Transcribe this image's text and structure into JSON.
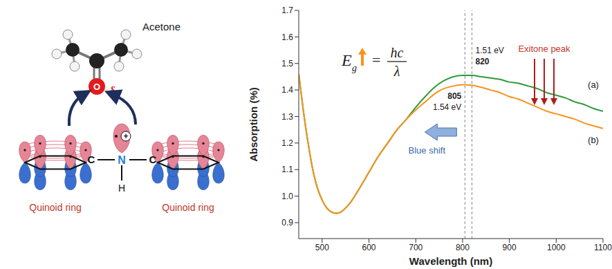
{
  "chart_data": {
    "type": "line",
    "x_label": "Wavelength (nm)",
    "y_label": "Absorption (%)",
    "x": [
      450,
      460,
      470,
      480,
      490,
      500,
      510,
      520,
      530,
      540,
      550,
      560,
      580,
      600,
      620,
      640,
      660,
      680,
      700,
      720,
      740,
      760,
      780,
      800,
      820,
      840,
      860,
      880,
      900,
      920,
      940,
      960,
      980,
      1000,
      1020,
      1040,
      1060,
      1080,
      1100
    ],
    "series": [
      {
        "name": "(a)",
        "color": "#2f9a3a",
        "values": [
          1.46,
          1.32,
          1.2,
          1.1,
          1.03,
          0.985,
          0.955,
          0.94,
          0.935,
          0.94,
          0.955,
          0.975,
          1.03,
          1.09,
          1.15,
          1.2,
          1.25,
          1.29,
          1.335,
          1.375,
          1.41,
          1.435,
          1.45,
          1.455,
          1.455,
          1.45,
          1.445,
          1.44,
          1.43,
          1.425,
          1.415,
          1.405,
          1.39,
          1.38,
          1.37,
          1.355,
          1.345,
          1.33,
          1.32
        ]
      },
      {
        "name": "(b)",
        "color": "#f7941d",
        "values": [
          1.46,
          1.32,
          1.2,
          1.1,
          1.03,
          0.985,
          0.955,
          0.94,
          0.935,
          0.94,
          0.955,
          0.975,
          1.03,
          1.09,
          1.15,
          1.2,
          1.25,
          1.29,
          1.325,
          1.355,
          1.385,
          1.405,
          1.415,
          1.42,
          1.418,
          1.41,
          1.4,
          1.39,
          1.375,
          1.365,
          1.35,
          1.335,
          1.32,
          1.31,
          1.3,
          1.29,
          1.275,
          1.265,
          1.255
        ]
      }
    ],
    "xlim": [
      450,
      1100
    ],
    "ylim": [
      0.84,
      1.7
    ],
    "xticks": [
      500,
      600,
      700,
      800,
      900,
      1000,
      1100
    ],
    "yticks": [
      0.9,
      {
        "value": 1,
        "label": "1.0"
      },
      1.1,
      1.2,
      1.3,
      1.4,
      1.5,
      1.6,
      1.7
    ],
    "grid": false,
    "annotations": {
      "peaks": [
        {
          "x": 820,
          "energy": "1.51 eV"
        },
        {
          "x": 805,
          "energy": "1.54 eV"
        }
      ],
      "shift": "Blue shift",
      "exciton": "Exitone peak",
      "formula": {
        "symbol": "E",
        "subscript": "g",
        "equals": "=",
        "numerator": "hc",
        "denominator": "λ"
      }
    }
  },
  "diagram": {
    "molecule": {
      "name": "Acetone",
      "atom": "O",
      "charge": "δ"
    },
    "rings": [
      {
        "label": "Quinoid ring",
        "atom": "C"
      },
      {
        "label": "Quinoid ring",
        "atom": "C"
      }
    ],
    "linker": {
      "atom": "N",
      "hydrogen": "H",
      "charge": "+"
    }
  }
}
